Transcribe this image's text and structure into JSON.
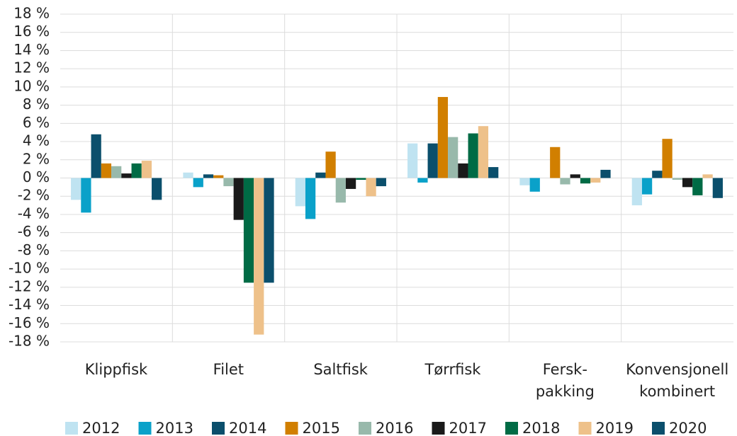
{
  "chart_data": {
    "type": "bar",
    "categories": [
      "Klippfisk",
      "Filet",
      "Saltfisk",
      "Tørrfisk",
      "Fersk-\npakking",
      "Konvensjonell\nkombinert"
    ],
    "series": [
      {
        "name": "2012",
        "color": "#bfe3f1",
        "values": [
          -2.4,
          0.6,
          -3.1,
          3.8,
          -0.8,
          -3.0
        ]
      },
      {
        "name": "2013",
        "color": "#0aa1c9",
        "values": [
          -3.8,
          -1.0,
          -4.5,
          -0.5,
          -1.5,
          -1.8
        ]
      },
      {
        "name": "2014",
        "color": "#0b4f6c",
        "values": [
          4.8,
          0.4,
          0.6,
          3.8,
          0,
          0.8
        ]
      },
      {
        "name": "2015",
        "color": "#d17f00",
        "values": [
          1.6,
          0.3,
          2.9,
          8.9,
          3.4,
          4.3
        ]
      },
      {
        "name": "2016",
        "color": "#98b9ab",
        "values": [
          1.3,
          -0.9,
          -2.7,
          4.5,
          -0.7,
          -0.2
        ]
      },
      {
        "name": "2017",
        "color": "#1a1a1a",
        "values": [
          0.5,
          -4.6,
          -1.2,
          1.6,
          0.4,
          -1.0
        ]
      },
      {
        "name": "2018",
        "color": "#006b45",
        "values": [
          1.6,
          -11.5,
          -0.2,
          4.9,
          -0.6,
          -1.9
        ]
      },
      {
        "name": "2019",
        "color": "#eec18a",
        "values": [
          1.9,
          -17.2,
          -2.0,
          5.7,
          -0.5,
          0.4
        ]
      },
      {
        "name": "2020",
        "color": "#0b4f6c",
        "values": [
          -2.4,
          -11.5,
          -0.9,
          1.2,
          0.9,
          -2.2
        ]
      }
    ],
    "ylim": [
      -18,
      18
    ],
    "yticks": [
      {
        "value": 18,
        "label": "18 %"
      },
      {
        "value": 16,
        "label": "16 %"
      },
      {
        "value": 14,
        "label": "14 %"
      },
      {
        "value": 12,
        "label": "12 %"
      },
      {
        "value": 10,
        "label": "10 %"
      },
      {
        "value": 8,
        "label": "8 %"
      },
      {
        "value": 6,
        "label": "6 %"
      },
      {
        "value": 4,
        "label": "4 %"
      },
      {
        "value": 2,
        "label": "2 %"
      },
      {
        "value": 0,
        "label": "0 %"
      },
      {
        "value": -2,
        "label": "-2 %"
      },
      {
        "value": -4,
        "label": "-4 %"
      },
      {
        "value": -6,
        "label": "-6 %"
      },
      {
        "value": -8,
        "label": "-8 %"
      },
      {
        "value": -10,
        "label": "-10 %"
      },
      {
        "value": -12,
        "label": "-12 %"
      },
      {
        "value": -14,
        "label": "-14 %"
      },
      {
        "value": -16,
        "label": "-16 %"
      },
      {
        "value": -18,
        "label": "-18 %"
      }
    ],
    "grid": true,
    "legend": "bottom"
  }
}
